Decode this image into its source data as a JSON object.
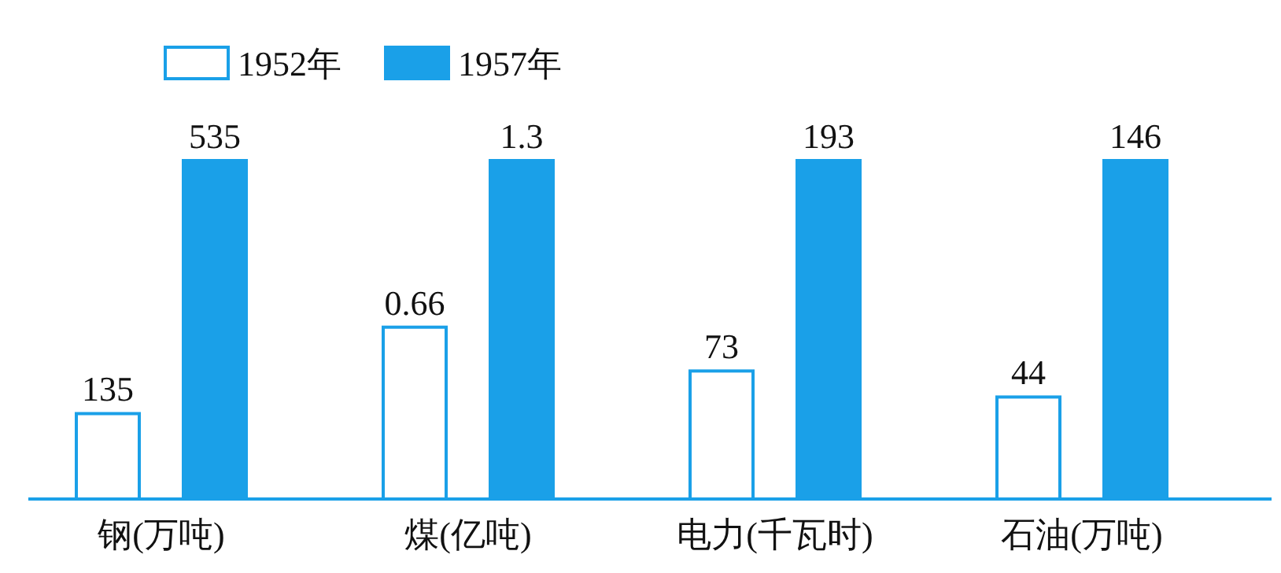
{
  "chart_data": [
    {
      "type": "bar",
      "categories": [
        "钢(万吨)"
      ],
      "legend": "top right",
      "data_labels": true,
      "series": [
        {
          "name": "1952年",
          "color": "#ffffff",
          "values": [
            135
          ]
        },
        {
          "name": "1957年",
          "color": "#1aa0e8",
          "values": [
            535
          ]
        }
      ]
    },
    {
      "type": "bar",
      "categories": [
        "煤(亿吨)"
      ],
      "data_labels": true,
      "series": [
        {
          "color": "#ffffff",
          "values": [
            0.66
          ]
        },
        {
          "color": "#1aa0e8",
          "values": [
            1.3
          ]
        }
      ]
    },
    {
      "type": "bar",
      "categories": [
        "电力(千瓦时)"
      ],
      "data_labels": true,
      "series": [
        {
          "color": "#ffffff",
          "values": [
            73
          ]
        },
        {
          "color": "#1aa0e8",
          "values": [
            193
          ]
        }
      ]
    },
    {
      "type": "bar",
      "categories": [
        "石油(万吨)"
      ],
      "data_labels": true,
      "series": [
        {
          "color": "#ffffff",
          "values": [
            44
          ]
        },
        {
          "color": "#1aa0e8",
          "values": [
            146
          ]
        }
      ]
    }
  ]
}
